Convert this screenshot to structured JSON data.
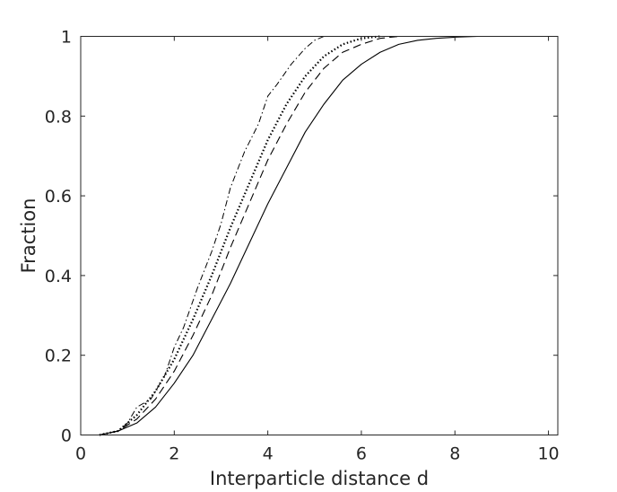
{
  "chart_data": {
    "type": "line",
    "title": "",
    "xlabel": "Interparticle distance d",
    "ylabel": "Fraction",
    "xlim": [
      0,
      10.2
    ],
    "ylim": [
      0,
      1
    ],
    "x_ticks": [
      0,
      2,
      4,
      6,
      8,
      10
    ],
    "x_tick_labels": [
      "0",
      "2",
      "4",
      "6",
      "8",
      "10"
    ],
    "y_ticks": [
      0,
      0.2,
      0.4,
      0.6,
      0.8,
      1
    ],
    "y_tick_labels": [
      "0",
      "0.2",
      "0.4",
      "0.6",
      "0.8",
      "1"
    ],
    "grid": false,
    "legend": "none",
    "series": [
      {
        "style": "solid",
        "x": [
          0.4,
          0.8,
          1.2,
          1.6,
          2.0,
          2.4,
          2.8,
          3.2,
          3.6,
          4.0,
          4.4,
          4.8,
          5.2,
          5.6,
          6.0,
          6.4,
          6.8,
          7.2,
          7.6,
          8.0,
          8.5,
          9.0,
          10.2
        ],
        "y": [
          0.0,
          0.01,
          0.03,
          0.07,
          0.13,
          0.2,
          0.29,
          0.38,
          0.48,
          0.58,
          0.67,
          0.76,
          0.83,
          0.89,
          0.93,
          0.96,
          0.98,
          0.99,
          0.995,
          0.998,
          1.0,
          1.0,
          1.0
        ]
      },
      {
        "style": "dashed",
        "x": [
          0.4,
          0.8,
          1.2,
          1.6,
          2.0,
          2.4,
          2.8,
          3.2,
          3.6,
          4.0,
          4.4,
          4.8,
          5.2,
          5.6,
          6.0,
          6.4,
          6.8,
          7.2
        ],
        "y": [
          0.0,
          0.01,
          0.04,
          0.09,
          0.16,
          0.25,
          0.35,
          0.47,
          0.58,
          0.69,
          0.78,
          0.86,
          0.92,
          0.96,
          0.98,
          0.995,
          1.0,
          1.0
        ]
      },
      {
        "style": "dotted",
        "x": [
          0.4,
          0.8,
          1.2,
          1.6,
          2.0,
          2.4,
          2.8,
          3.2,
          3.6,
          4.0,
          4.4,
          4.8,
          5.2,
          5.6,
          6.0,
          6.4
        ],
        "y": [
          0.0,
          0.01,
          0.05,
          0.11,
          0.19,
          0.29,
          0.4,
          0.52,
          0.63,
          0.74,
          0.83,
          0.9,
          0.95,
          0.98,
          0.995,
          1.0
        ]
      },
      {
        "style": "dash-dot",
        "x": [
          0.4,
          0.8,
          1.0,
          1.2,
          1.5,
          1.8,
          2.0,
          2.2,
          2.5,
          2.8,
          3.0,
          3.2,
          3.5,
          3.8,
          4.0,
          4.2,
          4.5,
          4.8,
          5.0,
          5.2,
          5.5
        ],
        "y": [
          0.0,
          0.01,
          0.03,
          0.07,
          0.09,
          0.15,
          0.22,
          0.27,
          0.37,
          0.46,
          0.53,
          0.62,
          0.71,
          0.78,
          0.85,
          0.88,
          0.93,
          0.97,
          0.99,
          1.0,
          1.0
        ]
      }
    ]
  }
}
